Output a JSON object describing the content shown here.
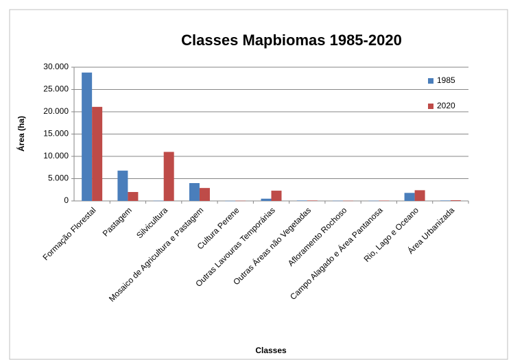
{
  "chart_data": {
    "type": "bar",
    "title": "Classes Mapbiomas 1985-2020",
    "x_label": "Classes",
    "y_label": "Área (ha)",
    "categories": [
      "Formação Florestal",
      "Pastagem",
      "Silvicultura",
      "Mosaico de Agricultura e Pastagem",
      "Cultura Perene",
      "Outras Lavouras Temporárias",
      "Outras Áreas não Vegetadas",
      "Afloramento Rochoso",
      "Campo Alagado e Área Pantanosa",
      "Rio, Lago e Oceano",
      "Área Urbanizada"
    ],
    "series": [
      {
        "name": "1985",
        "color": "#4a7ebb",
        "values": [
          28800,
          6800,
          50,
          4000,
          20,
          500,
          100,
          50,
          50,
          1800,
          100
        ]
      },
      {
        "name": "2020",
        "color": "#be4b48",
        "values": [
          21100,
          2000,
          11000,
          2900,
          50,
          2300,
          100,
          50,
          80,
          2400,
          150
        ]
      }
    ],
    "ylim": [
      0,
      30000
    ],
    "yticks": [
      0,
      {
        "value": 5000,
        "label": "5.000"
      },
      {
        "value": 10000,
        "label": "10.000"
      },
      {
        "value": 15000,
        "label": "15.000"
      },
      {
        "value": 20000,
        "label": "20.000"
      },
      {
        "value": 25000,
        "label": "25.000"
      },
      {
        "value": 30000,
        "label": "30.000"
      }
    ],
    "grid": true,
    "legend": "right"
  }
}
